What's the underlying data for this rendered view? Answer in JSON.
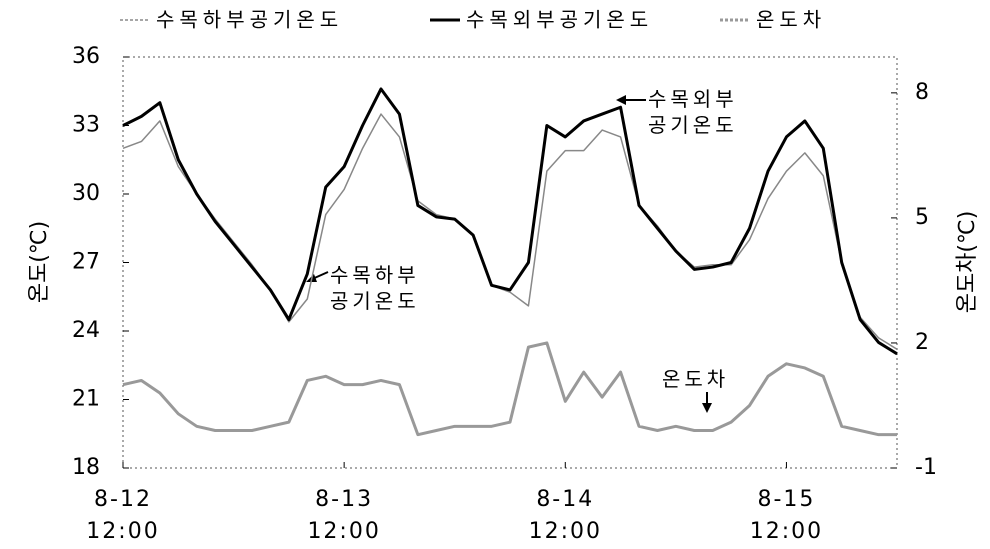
{
  "chart_data": {
    "type": "line",
    "ylabel": "온도(℃)",
    "y2label": "온도차(℃)",
    "x": [
      0,
      2,
      4,
      6,
      8,
      10,
      12,
      14,
      16,
      18,
      20,
      22,
      24,
      26,
      28,
      30,
      32,
      34,
      36,
      38,
      40,
      42,
      44,
      46,
      48,
      50,
      52,
      54,
      56,
      58,
      60,
      62,
      64,
      66,
      68,
      70,
      72,
      74,
      76,
      78,
      80,
      82,
      84
    ],
    "xlim": [
      0,
      84
    ],
    "xticks": [
      {
        "value": 0,
        "label": "8-12\n12:00"
      },
      {
        "value": 24,
        "label": "8-13\n12:00"
      },
      {
        "value": 48,
        "label": "8-14\n12:00"
      },
      {
        "value": 72,
        "label": "8-15\n12:00"
      }
    ],
    "ylim": [
      18,
      36
    ],
    "yticks": [
      18,
      21,
      24,
      27,
      30,
      33,
      36
    ],
    "y2lim": [
      -1,
      8.86
    ],
    "y2ticks": [
      -1,
      2,
      5,
      8
    ],
    "series": [
      {
        "name": "수목하부공기온도",
        "color": "#888888",
        "values": [
          32.0,
          32.3,
          33.2,
          31.2,
          30.0,
          28.9,
          27.9,
          26.9,
          25.8,
          24.4,
          25.4,
          29.1,
          30.2,
          32.0,
          33.5,
          32.5,
          29.7,
          29.1,
          28.9,
          28.2,
          26.0,
          25.7,
          25.1,
          31.0,
          31.9,
          31.9,
          32.8,
          32.5,
          29.5,
          28.6,
          27.5,
          26.8,
          26.9,
          26.9,
          28.0,
          29.8,
          31.0,
          31.8,
          30.8,
          27.0,
          24.6,
          23.7,
          23.2
        ]
      },
      {
        "name": "수목외부공기온도",
        "color": "#000000",
        "values": [
          33.0,
          33.4,
          34.0,
          31.5,
          30.0,
          28.8,
          27.8,
          26.8,
          25.8,
          24.5,
          26.5,
          30.3,
          31.2,
          33.0,
          34.6,
          33.5,
          29.5,
          29.0,
          28.9,
          28.2,
          26.0,
          25.8,
          27.0,
          33.0,
          32.5,
          33.2,
          33.5,
          33.8,
          29.5,
          28.5,
          27.5,
          26.7,
          26.8,
          27.0,
          28.5,
          31.0,
          32.5,
          33.2,
          32.0,
          27.0,
          24.5,
          23.5,
          23.0
        ]
      },
      {
        "name": "온도차",
        "color": "#999999",
        "axis": "y2",
        "values": [
          1.0,
          1.1,
          0.8,
          0.3,
          0.0,
          -0.1,
          -0.1,
          -0.1,
          0,
          0.1,
          1.1,
          1.2,
          1.0,
          1.0,
          1.1,
          1.0,
          -0.2,
          -0.1,
          0,
          0,
          0,
          0.1,
          1.9,
          2.0,
          0.6,
          1.3,
          0.7,
          1.3,
          0,
          -0.1,
          0,
          -0.1,
          -0.1,
          0.1,
          0.5,
          1.2,
          1.5,
          1.4,
          1.2,
          0,
          -0.1,
          -0.2,
          -0.2
        ]
      }
    ],
    "annotations": [
      "수목외부\n공기온도",
      "수목하부\n공기온도",
      "온도차"
    ]
  }
}
